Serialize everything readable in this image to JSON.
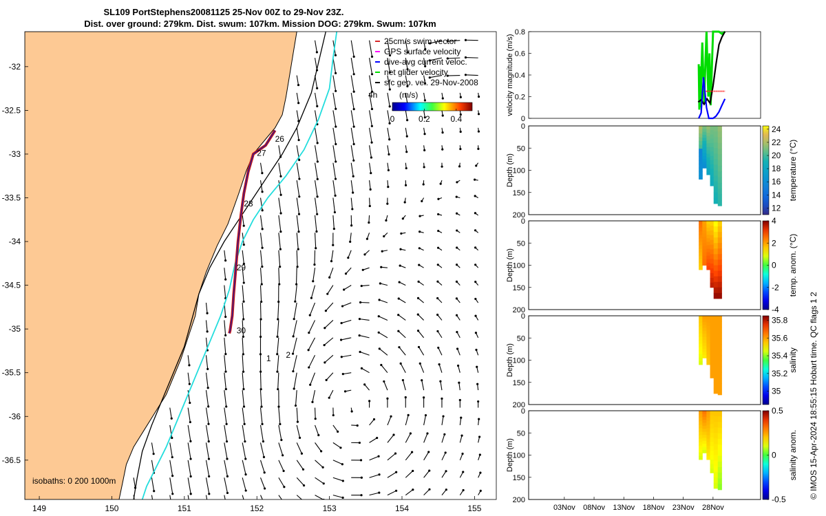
{
  "title": {
    "line1": "SL109 PortStephens20081125 25-Nov 00Z to 29-Nov 23Z.",
    "line2": "Dist. over ground: 279km. Dist. swum: 107km. Mission DOG: 279km. Swum: 107km"
  },
  "map": {
    "legend": [
      "25cm/s swim vector",
      "GPS surface velocity",
      "dive-avg current veloc.",
      "net glider velocity",
      "sfc geo. vel. 29-Nov-2008"
    ],
    "legend_colors": [
      "#d62728",
      "#ff00ff",
      "#0000ff",
      "#00dd00",
      "#000000"
    ],
    "colorbar_label": "4h",
    "colorbar_units": "(m/s)",
    "colorbar_ticks": [
      "0",
      "0.2",
      "0.4"
    ],
    "colorbar_range": [
      0,
      0.5
    ],
    "isobaths_label": "isobaths: 0   200  1000m",
    "land_color": "#fdc994",
    "day_labels": [
      {
        "text": "26",
        "lon": 152.25,
        "lat": -32.86
      },
      {
        "text": "27",
        "lon": 152.0,
        "lat": -33.02
      },
      {
        "text": "28",
        "lon": 151.82,
        "lat": -33.6
      },
      {
        "text": "29",
        "lon": 151.72,
        "lat": -34.33
      },
      {
        "text": "30",
        "lon": 151.72,
        "lat": -35.05
      },
      {
        "text": "1",
        "lon": 152.13,
        "lat": -35.37
      },
      {
        "text": "2",
        "lon": 152.4,
        "lat": -35.33
      }
    ]
  },
  "chart_data": [
    {
      "type": "map",
      "name": "track map",
      "x_ticks": [
        "149",
        "150",
        "151",
        "152",
        "153",
        "154",
        "155"
      ],
      "x_tick_values": [
        149,
        150,
        151,
        152,
        153,
        154,
        155
      ],
      "y_ticks": [
        "-32",
        "-32.5",
        "-33",
        "-33.5",
        "-34",
        "-34.5",
        "-35",
        "-35.5",
        "-36",
        "-36.5"
      ],
      "y_tick_values": [
        -32,
        -32.5,
        -33,
        -33.5,
        -34,
        -34.5,
        -35,
        -35.5,
        -36,
        -36.5
      ],
      "xlim": [
        148.8,
        155.3
      ],
      "ylim": [
        -36.95,
        -31.6
      ],
      "glider_track": {
        "lon": [
          152.25,
          152.12,
          151.95,
          151.88,
          151.82,
          151.78,
          151.74,
          151.71,
          151.68,
          151.66,
          151.63,
          151.62
        ],
        "lat": [
          -32.73,
          -32.9,
          -33.0,
          -33.2,
          -33.45,
          -33.7,
          -34.0,
          -34.3,
          -34.6,
          -34.85,
          -35.02,
          -35.05
        ]
      },
      "coastline": {
        "lon": [
          152.55,
          152.5,
          152.45,
          152.4,
          152.35,
          152.25,
          152.15,
          152.05,
          151.95,
          151.85,
          151.75,
          151.6,
          151.45,
          151.3,
          151.2,
          151.15,
          151.05,
          150.95,
          150.85,
          150.75,
          150.6,
          150.45,
          150.3,
          150.2,
          150.15,
          150.1
        ],
        "lat": [
          -31.6,
          -31.85,
          -32.1,
          -32.35,
          -32.55,
          -32.7,
          -32.8,
          -32.9,
          -33.0,
          -33.2,
          -33.45,
          -33.8,
          -34.05,
          -34.35,
          -34.6,
          -34.85,
          -35.1,
          -35.35,
          -35.55,
          -35.75,
          -35.95,
          -36.15,
          -36.35,
          -36.55,
          -36.75,
          -36.95
        ]
      },
      "isobath_200": {
        "lon": [
          152.95,
          152.85,
          152.75,
          152.55,
          152.35,
          152.15,
          151.95,
          151.75,
          151.55,
          151.35,
          151.2,
          151.1,
          151.0,
          150.85,
          150.7,
          150.55,
          150.42,
          150.35,
          150.3
        ],
        "lat": [
          -31.6,
          -31.95,
          -32.3,
          -32.7,
          -33.0,
          -33.25,
          -33.5,
          -33.75,
          -34.0,
          -34.3,
          -34.6,
          -34.9,
          -35.2,
          -35.5,
          -35.8,
          -36.1,
          -36.4,
          -36.7,
          -36.95
        ]
      },
      "isobath_1000": {
        "lon": [
          153.1,
          153.05,
          153.0,
          152.85,
          152.65,
          152.4,
          152.15,
          151.95,
          151.8,
          151.7,
          151.62,
          151.5,
          151.35,
          151.2,
          151.05,
          150.9,
          150.75,
          150.6,
          150.48,
          150.42
        ],
        "lat": [
          -31.6,
          -31.9,
          -32.25,
          -32.6,
          -32.95,
          -33.25,
          -33.5,
          -33.75,
          -34.0,
          -34.25,
          -34.55,
          -34.85,
          -35.15,
          -35.45,
          -35.75,
          -36.05,
          -36.35,
          -36.6,
          -36.8,
          -36.95
        ]
      }
    },
    {
      "type": "line",
      "name": "velocity magnitude",
      "ylabel": "velocity magnitude (m/s)",
      "y_ticks": [
        "0",
        "0.2",
        "0.4",
        "0.6",
        "0.8"
      ],
      "ylim": [
        0,
        0.8
      ],
      "x_day_range": [
        -3,
        36
      ],
      "series": [
        {
          "color": "#00dd00",
          "x": [
            25.6,
            25.7,
            25.8,
            25.9,
            26.0,
            26.2,
            26.5,
            26.9,
            27.2,
            27.4,
            27.6,
            28.0,
            28.4,
            29.0,
            29.5,
            30.0
          ],
          "y": [
            0.5,
            0.08,
            0.48,
            0.1,
            0.35,
            0.7,
            0.15,
            0.8,
            0.2,
            0.6,
            0.12,
            0.8,
            0.8,
            0.8,
            0.78,
            0.8
          ]
        },
        {
          "color": "#000000",
          "x": [
            25.5,
            26.0,
            26.5,
            27.0,
            27.5,
            28.0,
            28.5,
            29.0,
            29.5,
            30.0
          ],
          "y": [
            0.15,
            0.17,
            0.13,
            0.18,
            0.14,
            0.3,
            0.5,
            0.68,
            0.75,
            0.8
          ]
        },
        {
          "color": "#0000ff",
          "x": [
            25.6,
            26.0,
            26.4,
            26.9,
            27.3,
            27.7,
            28.0,
            28.5,
            29.0,
            29.5,
            30.0
          ],
          "y": [
            0.0,
            0.05,
            0.38,
            0.1,
            0.0,
            0.0,
            0.0,
            0.02,
            0.06,
            0.12,
            0.18
          ]
        },
        {
          "color": "#ff3333",
          "x": [
            26.8,
            27.5,
            28.0,
            28.5,
            29.0,
            29.5,
            30.0
          ],
          "y": [
            0.25,
            0.25,
            0.25,
            0.25,
            0.25,
            0.25,
            0.25
          ]
        }
      ]
    },
    {
      "type": "heatmap",
      "name": "temperature section",
      "ylabel": "Depth (m)",
      "y_ticks": [
        "0",
        "50",
        "100",
        "150",
        "200"
      ],
      "ylim": [
        0,
        200
      ],
      "colorbar_label": "temperature (°C)",
      "colorbar_ticks": [
        "12",
        "14",
        "16",
        "18",
        "20",
        "22",
        "24"
      ],
      "colorbar_range": [
        11,
        24.5
      ],
      "columns": [
        {
          "day": 25.6,
          "dmax": 120,
          "top": 22,
          "bottom": 17
        },
        {
          "day": 26.2,
          "dmax": 95,
          "top": 21,
          "bottom": 16
        },
        {
          "day": 26.9,
          "dmax": 110,
          "top": 21.5,
          "bottom": 18
        },
        {
          "day": 27.5,
          "dmax": 135,
          "top": 21,
          "bottom": 18.5
        },
        {
          "day": 28.1,
          "dmax": 175,
          "top": 21,
          "bottom": 19
        },
        {
          "day": 28.8,
          "dmax": 180,
          "top": 21.5,
          "bottom": 19.5
        }
      ]
    },
    {
      "type": "heatmap",
      "name": "temperature anomaly section",
      "ylabel": "Depth (m)",
      "y_ticks": [
        "0",
        "50",
        "100",
        "150",
        "200"
      ],
      "ylim": [
        0,
        200
      ],
      "colorbar_label": "temp. anom. (°C)",
      "colorbar_ticks": [
        "-4",
        "-2",
        "0",
        "2",
        "4"
      ],
      "colorbar_range": [
        -4,
        4
      ],
      "columns": [
        {
          "day": 25.6,
          "dmax": 110,
          "top": 2.5,
          "bottom": 1.5
        },
        {
          "day": 26.2,
          "dmax": 100,
          "top": 2.0,
          "bottom": 2.5
        },
        {
          "day": 26.9,
          "dmax": 110,
          "top": 1.5,
          "bottom": 3.0
        },
        {
          "day": 27.5,
          "dmax": 150,
          "top": 1.5,
          "bottom": 3.5
        },
        {
          "day": 28.1,
          "dmax": 175,
          "top": 1.0,
          "bottom": 3.8
        },
        {
          "day": 28.8,
          "dmax": 175,
          "top": 1.5,
          "bottom": 3.8
        }
      ]
    },
    {
      "type": "heatmap",
      "name": "salinity section",
      "ylabel": "Depth (m)",
      "y_ticks": [
        "0",
        "50",
        "100",
        "150",
        "200"
      ],
      "ylim": [
        0,
        200
      ],
      "colorbar_label": "salinity",
      "colorbar_ticks": [
        "35",
        "35.2",
        "35.4",
        "35.6",
        "35.8"
      ],
      "colorbar_range": [
        34.85,
        35.85
      ],
      "columns": [
        {
          "day": 25.6,
          "dmax": 110,
          "top": 35.55,
          "bottom": 35.45
        },
        {
          "day": 26.2,
          "dmax": 95,
          "top": 35.6,
          "bottom": 35.5
        },
        {
          "day": 26.9,
          "dmax": 110,
          "top": 35.6,
          "bottom": 35.55
        },
        {
          "day": 27.5,
          "dmax": 140,
          "top": 35.6,
          "bottom": 35.6
        },
        {
          "day": 28.1,
          "dmax": 175,
          "top": 35.6,
          "bottom": 35.6
        },
        {
          "day": 28.8,
          "dmax": 178,
          "top": 35.6,
          "bottom": 35.6
        }
      ]
    },
    {
      "type": "heatmap",
      "name": "salinity anomaly section",
      "ylabel": "Depth (m)",
      "y_ticks": [
        "0",
        "50",
        "100",
        "150",
        "200"
      ],
      "ylim": [
        0,
        200
      ],
      "x_ticks": [
        "03Nov",
        "08Nov",
        "13Nov",
        "18Nov",
        "23Nov",
        "28Nov"
      ],
      "x_tick_days": [
        3,
        8,
        13,
        18,
        23,
        28
      ],
      "colorbar_label": "salinity anom.",
      "colorbar_ticks": [
        "-0.5",
        "0",
        "0.5"
      ],
      "colorbar_range": [
        -0.5,
        0.5
      ],
      "columns": [
        {
          "day": 25.6,
          "dmax": 110,
          "top": 0.25,
          "bottom": 0.1
        },
        {
          "day": 26.2,
          "dmax": 95,
          "top": 0.3,
          "bottom": 0.1
        },
        {
          "day": 26.9,
          "dmax": 110,
          "top": 0.25,
          "bottom": 0.15
        },
        {
          "day": 27.5,
          "dmax": 140,
          "top": 0.2,
          "bottom": 0.1
        },
        {
          "day": 28.1,
          "dmax": 175,
          "top": 0.2,
          "bottom": 0.1
        },
        {
          "day": 28.8,
          "dmax": 178,
          "top": 0.2,
          "bottom": 0.05
        }
      ]
    }
  ],
  "credit": "© IMOS 15-Apr-2024 18:55:15 Hobart time. QC flags 1  2"
}
